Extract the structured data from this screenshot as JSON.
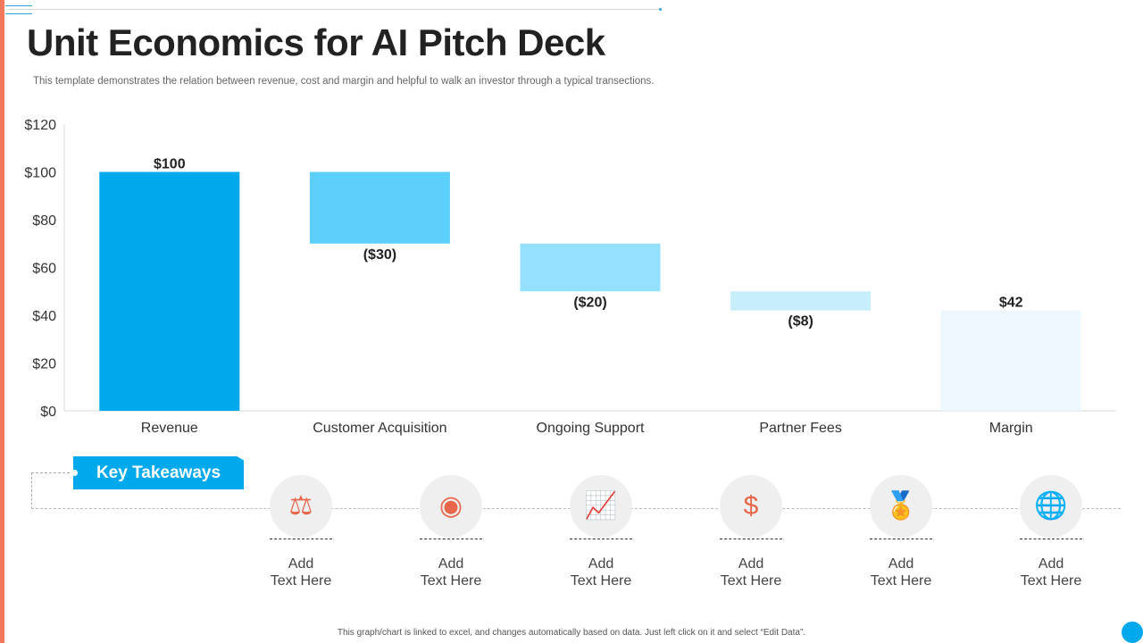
{
  "title": "Unit Economics for AI Pitch Deck",
  "subtitle": "This template demonstrates the relation between revenue, cost and margin and helpful to walk an investor through a typical transections.",
  "chart_data": {
    "type": "bar",
    "subtype": "waterfall",
    "categories": [
      "Revenue",
      "Customer Acquisition",
      "Ongoing Support",
      "Partner Fees",
      "Margin"
    ],
    "values": [
      100,
      -30,
      -20,
      -8,
      42
    ],
    "data_labels": [
      "$100",
      "($30)",
      "($20)",
      "($8)",
      "$42"
    ],
    "colors": [
      "#00A9EC",
      "#5DCFFB",
      "#94E0FD",
      "#C8EEFD",
      "#EDF8FE"
    ],
    "ylim": [
      0,
      120
    ],
    "yticks": [
      0,
      20,
      40,
      60,
      80,
      100,
      120
    ],
    "ytick_labels": [
      "$0",
      "$20",
      "$40",
      "$60",
      "$80",
      "$100",
      "$120"
    ],
    "grid": false,
    "title": "",
    "xlabel": "",
    "ylabel": ""
  },
  "takeaways": {
    "label": "Key Takeaways",
    "items": [
      {
        "icon": "scale-piggy-bank-icon",
        "glyph": "⚖",
        "line1": "Add",
        "line2": "Text Here"
      },
      {
        "icon": "billboard-ball-icon",
        "glyph": "◉",
        "line1": "Add",
        "line2": "Text Here"
      },
      {
        "icon": "growth-chart-icon",
        "glyph": "📈",
        "line1": "Add",
        "line2": "Text Here"
      },
      {
        "icon": "money-box-icon",
        "glyph": "$",
        "line1": "Add",
        "line2": "Text Here"
      },
      {
        "icon": "dollar-badge-icon",
        "glyph": "🏅",
        "line1": "Add",
        "line2": "Text Here"
      },
      {
        "icon": "globe-decline-icon",
        "glyph": "🌐",
        "line1": "Add",
        "line2": "Text Here"
      }
    ]
  },
  "footer": "This graph/chart is linked to excel, and changes automatically based on data. Just left click on it and select “Edit Data”."
}
